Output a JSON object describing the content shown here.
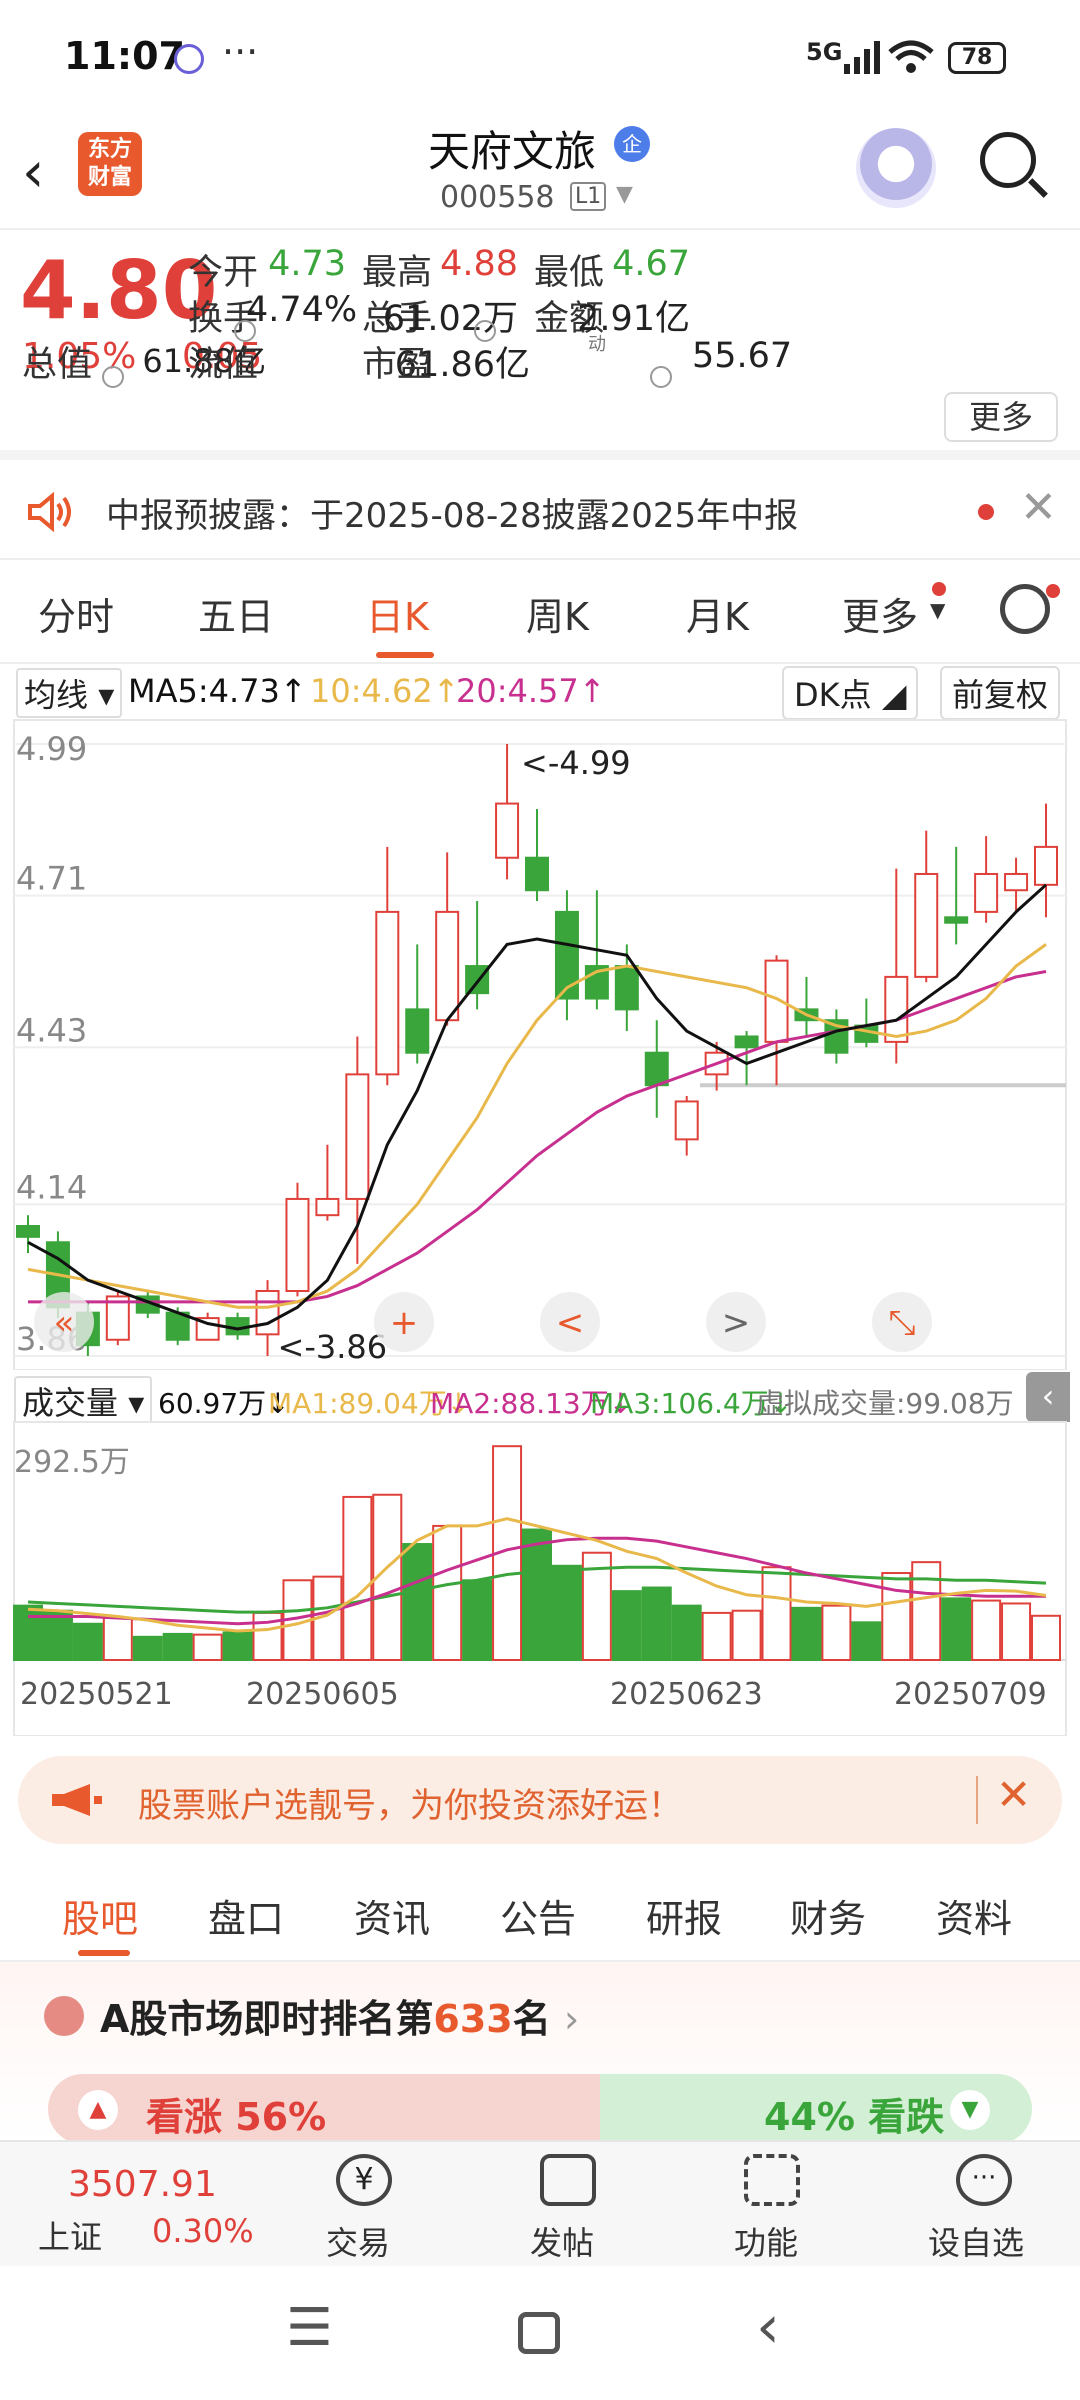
{
  "status_bar": {
    "time": "11:07",
    "dots": "···",
    "network": "5G",
    "battery": "78"
  },
  "header": {
    "logo": "东方\n财富",
    "stock_name": "天府文旅",
    "badge": "企",
    "stock_code": "000558",
    "level": "L1"
  },
  "quote": {
    "price": "4.80",
    "change_pct": "1.05%",
    "change_abs": "0.05",
    "fields": [
      {
        "label": "今开",
        "value": "4.73",
        "color": "green"
      },
      {
        "label": "最高",
        "value": "4.88",
        "color": "red"
      },
      {
        "label": "最低",
        "value": "4.67",
        "color": "green"
      },
      {
        "label": "换手",
        "value": "4.74%",
        "color": "black"
      },
      {
        "label": "总手",
        "value": "61.02万",
        "color": "black"
      },
      {
        "label": "金额",
        "value": "2.91亿",
        "color": "black"
      },
      {
        "label": "总值",
        "value": "61.88亿",
        "color": "black"
      },
      {
        "label": "流值",
        "value": "61.86亿",
        "color": "black"
      },
      {
        "label": "市盈",
        "value": "55.67",
        "color": "black"
      }
    ],
    "pe_super": "动",
    "more_label": "更多"
  },
  "notice": {
    "text": "中报预披露：于2025-08-28披露2025年中报"
  },
  "period_tabs": [
    "分时",
    "五日",
    "日K",
    "周K",
    "月K",
    "更多"
  ],
  "active_period": 2,
  "ma_row": {
    "selector": "均线",
    "ma5": "MA5:4.73",
    "ma10": "10:4.62",
    "ma20": "20:4.57",
    "dk": "DK点",
    "fq": "前复权"
  },
  "chart_data": [
    {
      "type": "candlestick",
      "y_ticks": [
        "4.99",
        "4.71",
        "4.43",
        "4.14",
        "3.86"
      ],
      "ylim": [
        3.86,
        4.99
      ],
      "annotations": [
        "<-4.99",
        "<-3.86"
      ],
      "candles": [
        [
          4.1,
          4.08,
          4.12,
          4.05
        ],
        [
          4.07,
          3.95,
          4.09,
          3.93
        ],
        [
          3.94,
          3.88,
          3.96,
          3.86
        ],
        [
          3.89,
          3.97,
          3.98,
          3.88
        ],
        [
          3.97,
          3.94,
          3.98,
          3.93
        ],
        [
          3.94,
          3.89,
          3.95,
          3.88
        ],
        [
          3.89,
          3.93,
          3.94,
          3.89
        ],
        [
          3.93,
          3.9,
          3.94,
          3.89
        ],
        [
          3.9,
          3.98,
          4.0,
          3.86
        ],
        [
          3.98,
          4.15,
          4.18,
          3.97
        ],
        [
          4.12,
          4.15,
          4.25,
          4.11
        ],
        [
          4.15,
          4.38,
          4.45,
          4.03
        ],
        [
          4.38,
          4.68,
          4.8,
          4.36
        ],
        [
          4.5,
          4.42,
          4.62,
          4.4
        ],
        [
          4.48,
          4.68,
          4.79,
          4.47
        ],
        [
          4.58,
          4.53,
          4.7,
          4.5
        ],
        [
          4.78,
          4.88,
          4.99,
          4.74
        ],
        [
          4.78,
          4.72,
          4.87,
          4.7
        ],
        [
          4.68,
          4.52,
          4.72,
          4.48
        ],
        [
          4.58,
          4.52,
          4.72,
          4.5
        ],
        [
          4.58,
          4.5,
          4.62,
          4.46
        ],
        [
          4.42,
          4.36,
          4.48,
          4.3
        ],
        [
          4.26,
          4.33,
          4.34,
          4.23
        ],
        [
          4.38,
          4.42,
          4.44,
          4.35
        ],
        [
          4.45,
          4.43,
          4.46,
          4.36
        ],
        [
          4.44,
          4.59,
          4.6,
          4.36
        ],
        [
          4.5,
          4.48,
          4.56,
          4.45
        ],
        [
          4.48,
          4.42,
          4.5,
          4.4
        ],
        [
          4.47,
          4.44,
          4.52,
          4.43
        ],
        [
          4.44,
          4.56,
          4.76,
          4.4
        ],
        [
          4.56,
          4.75,
          4.83,
          4.55
        ],
        [
          4.67,
          4.66,
          4.8,
          4.62
        ],
        [
          4.68,
          4.75,
          4.82,
          4.66
        ],
        [
          4.72,
          4.75,
          4.78,
          4.68
        ],
        [
          4.73,
          4.8,
          4.88,
          4.67
        ]
      ],
      "ma5": [
        4.07,
        4.04,
        4.0,
        3.98,
        3.96,
        3.94,
        3.92,
        3.91,
        3.92,
        3.95,
        4.0,
        4.1,
        4.25,
        4.35,
        4.48,
        4.55,
        4.62,
        4.63,
        4.62,
        4.61,
        4.6,
        4.52,
        4.46,
        4.43,
        4.4,
        4.42,
        4.44,
        4.46,
        4.47,
        4.48,
        4.52,
        4.56,
        4.62,
        4.68,
        4.73
      ],
      "ma10": [
        4.02,
        4.01,
        4.0,
        3.99,
        3.98,
        3.97,
        3.96,
        3.95,
        3.95,
        3.96,
        3.98,
        4.02,
        4.08,
        4.14,
        4.22,
        4.3,
        4.4,
        4.48,
        4.54,
        4.57,
        4.58,
        4.57,
        4.56,
        4.55,
        4.54,
        4.52,
        4.49,
        4.47,
        4.46,
        4.45,
        4.46,
        4.48,
        4.52,
        4.58,
        4.62
      ],
      "ma20": [
        3.96,
        3.96,
        3.96,
        3.96,
        3.96,
        3.96,
        3.96,
        3.96,
        3.96,
        3.96,
        3.97,
        3.99,
        4.02,
        4.05,
        4.09,
        4.13,
        4.18,
        4.23,
        4.27,
        4.31,
        4.34,
        4.36,
        4.38,
        4.4,
        4.42,
        4.44,
        4.45,
        4.46,
        4.47,
        4.48,
        4.5,
        4.52,
        4.54,
        4.56,
        4.57
      ]
    },
    {
      "type": "bar",
      "title": "成交量",
      "legend": {
        "vol": "60.97万",
        "ma1": "MA1:89.04万",
        "ma2": "MA2:88.13万",
        "ma3": "MA3:106.4万",
        "virtual": "虚拟成交量:99.08万"
      },
      "y_max_label": "292.5万",
      "ylim": [
        0,
        292.5
      ],
      "x_labels": [
        "20250521",
        "20250605",
        "20250623",
        "20250709"
      ],
      "volumes": [
        75,
        68,
        50,
        58,
        32,
        36,
        35,
        38,
        65,
        110,
        115,
        225,
        228,
        160,
        185,
        110,
        295,
        180,
        130,
        148,
        95,
        100,
        75,
        65,
        68,
        128,
        72,
        75,
        52,
        120,
        135,
        85,
        82,
        78,
        61
      ],
      "vol_colors": [
        "g",
        "g",
        "g",
        "r",
        "g",
        "g",
        "r",
        "g",
        "r",
        "r",
        "r",
        "r",
        "r",
        "g",
        "r",
        "g",
        "r",
        "g",
        "g",
        "r",
        "g",
        "g",
        "g",
        "r",
        "r",
        "r",
        "g",
        "r",
        "g",
        "r",
        "r",
        "g",
        "r",
        "r",
        "r"
      ],
      "ma1": [
        70,
        68,
        64,
        60,
        55,
        48,
        44,
        40,
        42,
        50,
        62,
        88,
        128,
        165,
        185,
        185,
        195,
        185,
        175,
        165,
        150,
        140,
        120,
        102,
        90,
        86,
        80,
        78,
        74,
        80,
        86,
        92,
        96,
        95,
        89
      ],
      "ma2": [
        60,
        60,
        60,
        58,
        56,
        54,
        52,
        50,
        52,
        58,
        66,
        78,
        92,
        108,
        124,
        138,
        152,
        160,
        166,
        168,
        168,
        164,
        156,
        148,
        140,
        130,
        120,
        112,
        104,
        96,
        92,
        90,
        88,
        88,
        88
      ],
      "ma3": [
        80,
        78,
        76,
        74,
        72,
        70,
        68,
        66,
        66,
        68,
        72,
        80,
        88,
        96,
        104,
        110,
        118,
        122,
        124,
        126,
        128,
        128,
        126,
        124,
        122,
        120,
        118,
        116,
        114,
        112,
        112,
        110,
        110,
        108,
        106
      ]
    }
  ],
  "promo": {
    "text": "股票账户选靓号，为你投资添好运！"
  },
  "sub_tabs": [
    "股吧",
    "盘口",
    "资讯",
    "公告",
    "研报",
    "财务",
    "资料"
  ],
  "rank": {
    "prefix": "A股市场即时排名第",
    "num": "633",
    "suffix": "名",
    "rise": "看涨 56%",
    "fall": "44% 看跌"
  },
  "bottom_nav": {
    "index_value": "3507.91",
    "index_name": "上证",
    "index_pct": "0.30%",
    "items": [
      "交易",
      "发帖",
      "功能",
      "设自选"
    ]
  },
  "colors": {
    "up": "#e0403a",
    "down": "#3aa53a",
    "accent": "#e8592d",
    "ma5": "#111111",
    "ma10": "#e9b84a",
    "ma20": "#c8308f"
  }
}
